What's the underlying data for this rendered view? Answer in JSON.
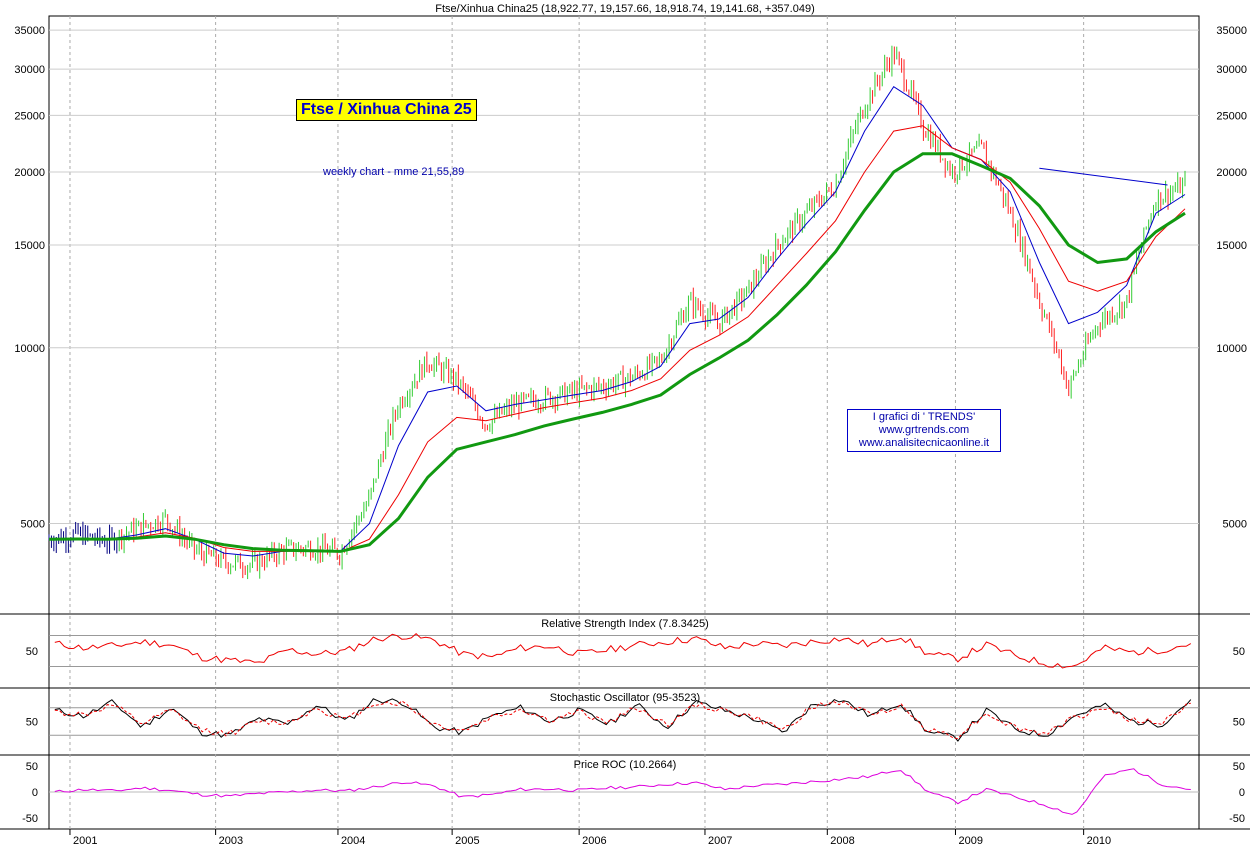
{
  "header": {
    "ohlc_text": "Ftse/Xinhua China25 (18,922.77, 19,157.66, 18,918.74, 19,141.68, +357.049)"
  },
  "annotations": {
    "title": "Ftse / Xinhua China 25",
    "subtitle": "weekly chart - mme 21,55,89",
    "credit_line1": "I grafici di ' TRENDS'",
    "credit_line2": "www.grtrends.com",
    "credit_line3": "www.analisitecnicaonline.it"
  },
  "colors": {
    "up_bar": "#33cc33",
    "down_bar": "#ff2222",
    "ma21": "#0000cc",
    "ma55": "#ee0000",
    "ma89": "#119911",
    "rsi": "#ee0000",
    "stoch_k": "#000000",
    "stoch_d": "#ee0000",
    "roc": "#dd00dd",
    "grid": "#aaaaaa",
    "trendline": "#0000cc"
  },
  "chart_data": [
    {
      "type": "line",
      "panel": "price",
      "title": "Ftse/Xinhua China25 (18,922.77, 19,157.66, 18,918.74, 19,141.68, +357.049)",
      "y_scale": "log",
      "ylim": [
        3500,
        37000
      ],
      "y_ticks": [
        5000,
        10000,
        15000,
        20000,
        25000,
        30000,
        35000
      ],
      "x_ticks": [
        "2001",
        "2003",
        "2004",
        "2005",
        "2006",
        "2007",
        "2008",
        "2009",
        "2010"
      ],
      "x_range": [
        2001.0,
        2010.75
      ],
      "grid": true,
      "x": [
        2001.0,
        2001.25,
        2001.5,
        2001.75,
        2002.0,
        2002.25,
        2002.5,
        2002.75,
        2003.0,
        2003.25,
        2003.5,
        2003.75,
        2004.0,
        2004.25,
        2004.5,
        2004.75,
        2005.0,
        2005.25,
        2005.5,
        2005.75,
        2006.0,
        2006.25,
        2006.5,
        2006.75,
        2007.0,
        2007.25,
        2007.5,
        2007.75,
        2008.0,
        2008.25,
        2008.5,
        2008.75,
        2009.0,
        2009.25,
        2009.5,
        2009.75,
        2010.0,
        2010.25,
        2010.5,
        2010.75
      ],
      "series": [
        {
          "name": "Price",
          "values": [
            4700,
            4800,
            4650,
            4900,
            5100,
            4500,
            4300,
            4250,
            4500,
            4550,
            4450,
            5500,
            8000,
            9500,
            8800,
            7400,
            8000,
            8200,
            8400,
            8600,
            8900,
            9500,
            12000,
            11000,
            12500,
            15000,
            17000,
            19000,
            26000,
            32000,
            24000,
            20000,
            22000,
            17000,
            12000,
            8500,
            11000,
            12000,
            18000,
            19000
          ]
        },
        {
          "name": "MME 21",
          "values": [
            4700,
            4720,
            4700,
            4780,
            4900,
            4700,
            4450,
            4400,
            4480,
            4500,
            4480,
            5000,
            6800,
            8400,
            8600,
            7800,
            8000,
            8150,
            8300,
            8450,
            8750,
            9300,
            11000,
            11200,
            12200,
            14200,
            16300,
            18500,
            23500,
            28000,
            26000,
            22000,
            21000,
            18500,
            14000,
            11000,
            11500,
            12800,
            17000,
            18300
          ]
        },
        {
          "name": "MME 55",
          "values": [
            4700,
            4710,
            4700,
            4740,
            4820,
            4720,
            4550,
            4480,
            4480,
            4490,
            4470,
            4700,
            5600,
            6900,
            7600,
            7500,
            7700,
            7900,
            8050,
            8200,
            8450,
            8850,
            9900,
            10500,
            11300,
            12800,
            14500,
            16500,
            20000,
            23500,
            24000,
            22000,
            21000,
            19200,
            16000,
            13000,
            12500,
            13000,
            15500,
            17300
          ]
        },
        {
          "name": "MME 89",
          "values": [
            4700,
            4705,
            4700,
            4720,
            4760,
            4700,
            4600,
            4530,
            4500,
            4490,
            4480,
            4600,
            5100,
            6000,
            6700,
            6900,
            7100,
            7350,
            7550,
            7750,
            8000,
            8300,
            9000,
            9600,
            10300,
            11400,
            12800,
            14600,
            17200,
            20000,
            21500,
            21500,
            20500,
            19500,
            17500,
            15000,
            14000,
            14200,
            15800,
            17000
          ]
        }
      ]
    },
    {
      "type": "line",
      "panel": "rsi",
      "title": "Relative Strength Index (7.8.3425)",
      "ylim": [
        0,
        100
      ],
      "y_ticks": [
        50
      ],
      "series": [
        {
          "name": "RSI",
          "values": [
            62,
            55,
            58,
            65,
            60,
            40,
            35,
            30,
            52,
            45,
            50,
            70,
            75,
            68,
            45,
            40,
            55,
            58,
            45,
            52,
            60,
            65,
            70,
            55,
            62,
            58,
            65,
            70,
            60,
            75,
            45,
            38,
            60,
            42,
            30,
            25,
            55,
            48,
            52,
            62
          ]
        }
      ]
    },
    {
      "type": "line",
      "panel": "stochastic",
      "title": "Stochastic Oscillator (95-3523)",
      "ylim": [
        0,
        100
      ],
      "y_ticks": [
        50
      ],
      "series": [
        {
          "name": "%K",
          "values": [
            70,
            60,
            85,
            40,
            75,
            30,
            25,
            55,
            45,
            80,
            50,
            90,
            85,
            40,
            30,
            60,
            75,
            50,
            70,
            45,
            80,
            40,
            85,
            70,
            55,
            30,
            80,
            90,
            60,
            85,
            30,
            20,
            70,
            35,
            25,
            60,
            80,
            50,
            45,
            90
          ]
        },
        {
          "name": "%D",
          "values": [
            68,
            62,
            80,
            45,
            70,
            35,
            28,
            50,
            48,
            75,
            52,
            85,
            83,
            45,
            33,
            58,
            72,
            52,
            67,
            48,
            76,
            44,
            80,
            70,
            57,
            34,
            76,
            86,
            62,
            80,
            34,
            24,
            65,
            38,
            28,
            56,
            76,
            52,
            47,
            85
          ]
        }
      ]
    },
    {
      "type": "line",
      "panel": "roc",
      "title": "Price ROC (10.2664)",
      "ylim": [
        -60,
        60
      ],
      "y_ticks": [
        50,
        0,
        -50
      ],
      "series": [
        {
          "name": "ROC",
          "values": [
            0,
            5,
            2,
            8,
            3,
            -5,
            -8,
            -3,
            0,
            4,
            2,
            10,
            20,
            12,
            -10,
            -5,
            5,
            6,
            3,
            8,
            10,
            15,
            18,
            5,
            12,
            15,
            20,
            25,
            30,
            45,
            0,
            -20,
            5,
            -10,
            -25,
            -45,
            30,
            45,
            15,
            5
          ]
        }
      ]
    }
  ]
}
